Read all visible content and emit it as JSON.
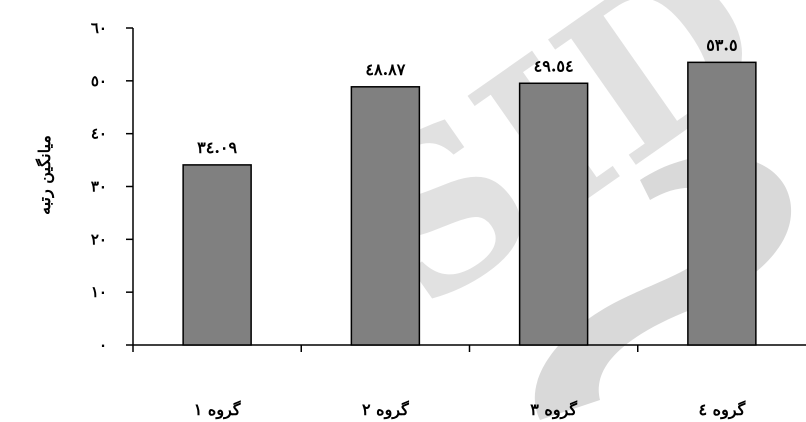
{
  "chart_data": {
    "type": "bar",
    "categories": [
      "گروه ۱",
      "گروه ۲",
      "گروه ۳",
      "گروه ٤"
    ],
    "values": [
      34.09,
      48.87,
      49.54,
      53.5
    ],
    "data_labels": [
      "٣٤.٠٩",
      "٤٨.٨٧",
      "٤٩.٥٤",
      "٥٣.٥"
    ],
    "ylabel": "میانگین رتبه",
    "xlabel": "",
    "ylim": [
      0,
      60
    ],
    "y_ticks": [
      0,
      10,
      20,
      30,
      40,
      50,
      60
    ],
    "y_tick_labels": [
      "٠",
      "١٠",
      "٢٠",
      "٣٠",
      "٤٠",
      "٥٠",
      "٦٠"
    ],
    "bar_color": "#808080",
    "grid": false,
    "legend": "none"
  },
  "watermark": {
    "text": "SID"
  }
}
